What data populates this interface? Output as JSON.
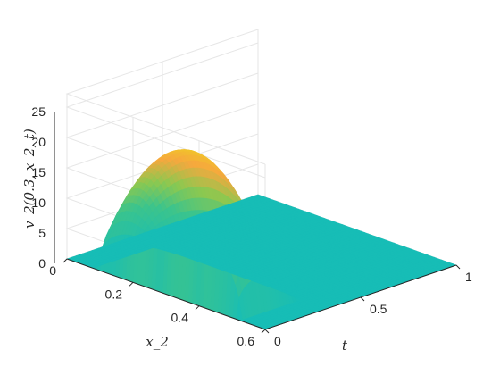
{
  "chart_data": {
    "type": "surface",
    "title": "",
    "xlabel": "t",
    "ylabel": "x_2",
    "zlabel": "v_2(0.3, x_2, t)",
    "xlim": [
      0,
      1
    ],
    "ylim": [
      0,
      0.6
    ],
    "zlim": [
      0,
      25
    ],
    "x_ticks": [
      {
        "v": 0,
        "label": "0"
      },
      {
        "v": 0.5,
        "label": "0.5"
      },
      {
        "v": 1,
        "label": "1"
      }
    ],
    "y_ticks": [
      {
        "v": 0,
        "label": "0"
      },
      {
        "v": 0.2,
        "label": "0.2"
      },
      {
        "v": 0.4,
        "label": "0.4"
      },
      {
        "v": 0.6,
        "label": "0.6"
      }
    ],
    "z_ticks": [
      {
        "v": 0,
        "label": "0"
      },
      {
        "v": 5,
        "label": "5"
      },
      {
        "v": 10,
        "label": "10"
      },
      {
        "v": 15,
        "label": "15"
      },
      {
        "v": 20,
        "label": "20"
      },
      {
        "v": 25,
        "label": "25"
      }
    ],
    "colormap": "parula",
    "grid": true,
    "surface": {
      "peak_value": 25.5,
      "peak_t": 0.1,
      "peak_x2": 0.32,
      "support_t": [
        0,
        0.32
      ],
      "support_x2": [
        0.08,
        0.52
      ],
      "base_value": 0
    },
    "colors": {
      "low": "#17bdb6",
      "mid": "#34c487",
      "high": "#f9f91a"
    }
  }
}
